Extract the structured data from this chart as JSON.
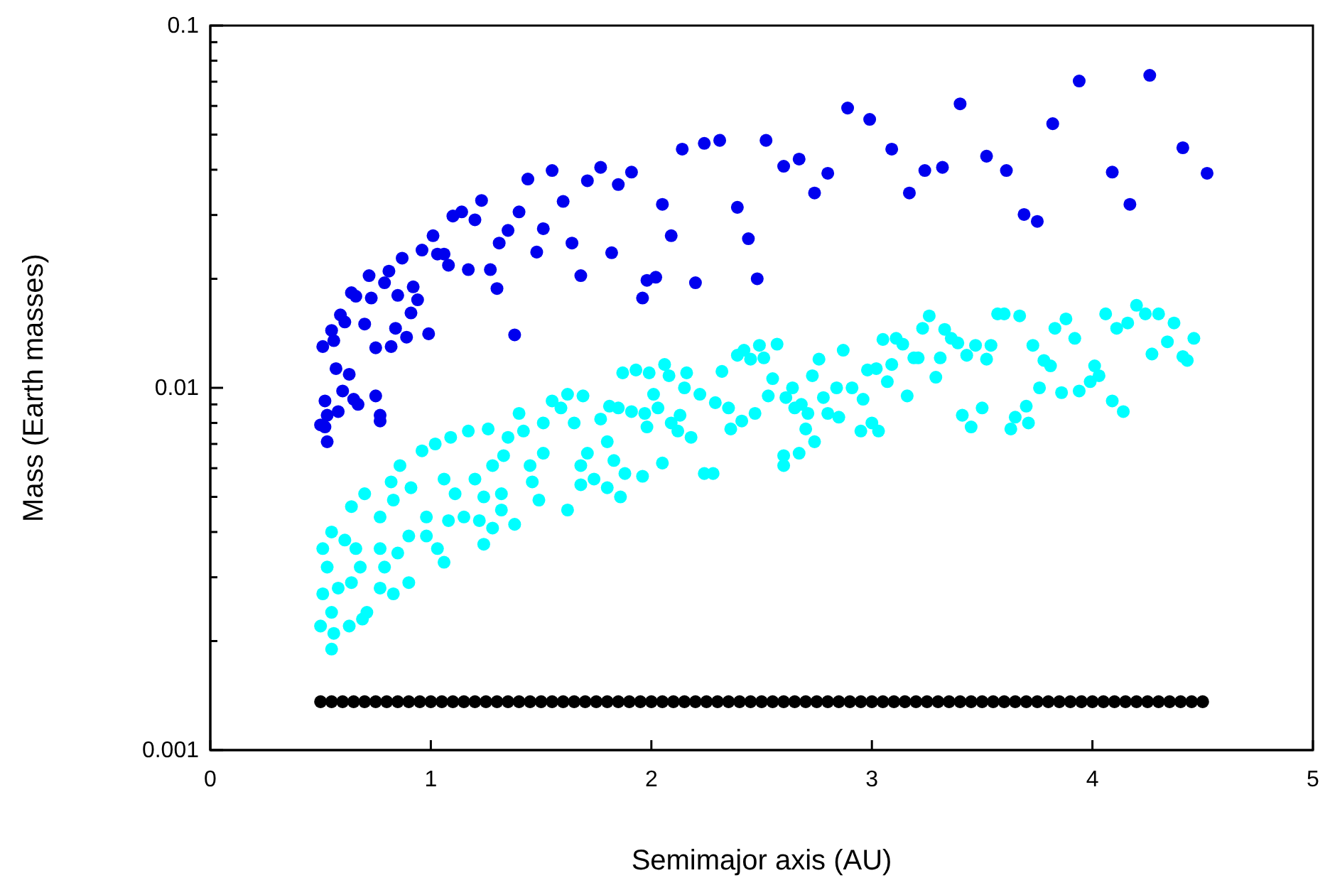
{
  "chart_data": {
    "type": "scatter",
    "xlabel": "Semimajor axis (AU)",
    "ylabel": "Mass (Earth masses)",
    "log": "y",
    "marker": "circle",
    "xlim": [
      0,
      5
    ],
    "xticks": [
      0,
      1,
      2,
      3,
      4,
      5
    ],
    "ylim": [
      0.001,
      0.1
    ],
    "yticks": [
      {
        "value": 0.001,
        "label": "0.001"
      },
      {
        "value": 0.002,
        "label": null
      },
      {
        "value": 0.003,
        "label": null
      },
      {
        "value": 0.004,
        "label": null
      },
      {
        "value": 0.005,
        "label": null
      },
      {
        "value": 0.006,
        "label": null
      },
      {
        "value": 0.007,
        "label": null
      },
      {
        "value": 0.008,
        "label": null
      },
      {
        "value": 0.009,
        "label": null
      },
      {
        "value": 0.01,
        "label": "0.01"
      },
      {
        "value": 0.02,
        "label": null
      },
      {
        "value": 0.03,
        "label": null
      },
      {
        "value": 0.04,
        "label": null
      },
      {
        "value": 0.05,
        "label": null
      },
      {
        "value": 0.06,
        "label": null
      },
      {
        "value": 0.07,
        "label": null
      },
      {
        "value": 0.08,
        "label": null
      },
      {
        "value": 0.09,
        "label": null
      },
      {
        "value": 0.1,
        "label": "0.1"
      }
    ],
    "series": [
      {
        "color": "#0000ee",
        "x": [
          0.51,
          0.55,
          0.56,
          0.59,
          0.61,
          0.64,
          0.66,
          0.72,
          0.73,
          0.7,
          0.79,
          0.81,
          0.85,
          0.87,
          0.92,
          0.94,
          0.91,
          0.84,
          0.89,
          0.99,
          0.75,
          0.82,
          0.96,
          1.01,
          1.03,
          1.06,
          1.08,
          1.1,
          1.14,
          1.2,
          1.23,
          1.17,
          1.27,
          1.3,
          1.31,
          1.35,
          1.4,
          1.44,
          1.51,
          1.48,
          1.55,
          1.6,
          1.64,
          1.68,
          1.38,
          1.71,
          1.77,
          1.85,
          1.91,
          1.82,
          1.96,
          1.98,
          2.02,
          2.05,
          2.09,
          2.14,
          2.2,
          2.24,
          2.31,
          2.39,
          2.44,
          2.48,
          2.52,
          2.6,
          2.67,
          2.8,
          2.74,
          2.89,
          2.99,
          3.09,
          3.17,
          3.24,
          3.32,
          3.4,
          3.52,
          3.61,
          3.69,
          3.75,
          3.82,
          3.94,
          4.09,
          4.17,
          4.26,
          4.41,
          4.52,
          0.57,
          0.63,
          0.6,
          0.52,
          0.65,
          0.67,
          0.58,
          0.53,
          0.75,
          0.77,
          0.77,
          0.5,
          0.52,
          0.53
        ],
        "values": [
          0.013,
          0.0144,
          0.0135,
          0.0159,
          0.0152,
          0.0183,
          0.0179,
          0.0204,
          0.0177,
          0.015,
          0.0195,
          0.021,
          0.018,
          0.0228,
          0.019,
          0.0175,
          0.0161,
          0.0146,
          0.0138,
          0.0141,
          0.0129,
          0.013,
          0.024,
          0.0263,
          0.0234,
          0.0234,
          0.0218,
          0.0298,
          0.0306,
          0.0291,
          0.0329,
          0.0212,
          0.0212,
          0.0188,
          0.0251,
          0.0272,
          0.0306,
          0.0377,
          0.0275,
          0.0237,
          0.0398,
          0.0327,
          0.0251,
          0.0204,
          0.014,
          0.0373,
          0.0406,
          0.0364,
          0.0394,
          0.0236,
          0.0177,
          0.0198,
          0.0202,
          0.0321,
          0.0263,
          0.0456,
          0.0195,
          0.0473,
          0.0482,
          0.0315,
          0.0258,
          0.02,
          0.0482,
          0.0409,
          0.0428,
          0.0391,
          0.0345,
          0.0592,
          0.0551,
          0.0456,
          0.0345,
          0.0398,
          0.0406,
          0.0608,
          0.0436,
          0.0398,
          0.0301,
          0.0288,
          0.0536,
          0.0703,
          0.0394,
          0.0321,
          0.0729,
          0.046,
          0.0391,
          0.0113,
          0.0109,
          0.0098,
          0.0092,
          0.0093,
          0.009,
          0.0086,
          0.0084,
          0.0095,
          0.0084,
          0.0081,
          0.0079,
          0.0078,
          0.0071
        ]
      },
      {
        "color": "#00ffff",
        "x": [
          0.55,
          0.5,
          0.56,
          0.55,
          0.63,
          0.69,
          0.71,
          0.51,
          0.53,
          0.58,
          0.64,
          0.68,
          0.77,
          0.83,
          0.9,
          0.51,
          0.55,
          0.61,
          0.64,
          0.7,
          0.66,
          0.77,
          0.79,
          0.85,
          0.77,
          0.83,
          0.86,
          0.82,
          0.9,
          0.96,
          0.91,
          0.98,
          0.98,
          1.03,
          1.06,
          1.02,
          1.06,
          1.09,
          1.11,
          1.08,
          1.15,
          1.17,
          1.2,
          1.24,
          1.22,
          1.24,
          1.26,
          1.28,
          1.32,
          1.28,
          1.33,
          1.35,
          1.4,
          1.42,
          1.32,
          1.38,
          1.45,
          1.46,
          1.49,
          1.51,
          1.51,
          1.55,
          1.59,
          1.62,
          1.69,
          1.65,
          1.62,
          1.68,
          1.71,
          1.74,
          1.68,
          1.77,
          1.8,
          1.83,
          1.8,
          1.86,
          1.88,
          1.81,
          1.85,
          1.87,
          1.93,
          1.91,
          1.97,
          1.96,
          1.99,
          1.98,
          2.01,
          2.03,
          2.05,
          2.06,
          2.08,
          2.09,
          2.12,
          2.13,
          2.15,
          2.16,
          2.18,
          2.24,
          2.28,
          2.22,
          2.29,
          2.35,
          2.32,
          2.36,
          2.41,
          2.47,
          2.39,
          2.42,
          2.45,
          2.49,
          2.51,
          2.57,
          2.55,
          2.53,
          2.61,
          2.64,
          2.65,
          2.7,
          2.6,
          2.67,
          2.6,
          2.73,
          2.76,
          2.68,
          2.71,
          2.74,
          2.78,
          2.84,
          2.91,
          2.96,
          2.8,
          2.85,
          2.87,
          2.95,
          3.0,
          3.03,
          2.98,
          3.02,
          3.07,
          3.05,
          3.09,
          3.11,
          3.14,
          3.16,
          3.19,
          3.21,
          3.23,
          3.26,
          3.29,
          3.31,
          3.33,
          3.36,
          3.39,
          3.41,
          3.45,
          3.43,
          3.47,
          3.5,
          3.52,
          3.54,
          3.57,
          3.6,
          3.67,
          3.63,
          3.65,
          3.7,
          3.71,
          3.73,
          3.76,
          3.78,
          3.81,
          3.83,
          3.86,
          3.88,
          3.92,
          3.94,
          3.99,
          4.01,
          4.03,
          4.06,
          4.09,
          4.11,
          4.14,
          4.16,
          4.2,
          4.24,
          4.27,
          4.3,
          4.34,
          4.37,
          4.41,
          4.43,
          4.46
        ],
        "values": [
          0.0019,
          0.0022,
          0.0021,
          0.0024,
          0.0022,
          0.0023,
          0.0024,
          0.0027,
          0.0032,
          0.0028,
          0.0029,
          0.0032,
          0.0028,
          0.0027,
          0.0029,
          0.0036,
          0.004,
          0.0038,
          0.0047,
          0.0051,
          0.0036,
          0.0036,
          0.0032,
          0.0035,
          0.0044,
          0.0049,
          0.0061,
          0.0055,
          0.0039,
          0.0067,
          0.0053,
          0.0044,
          0.0039,
          0.0036,
          0.0033,
          0.007,
          0.0056,
          0.0073,
          0.0051,
          0.0043,
          0.0044,
          0.0076,
          0.0056,
          0.005,
          0.0043,
          0.0037,
          0.0077,
          0.0061,
          0.0051,
          0.0041,
          0.0065,
          0.0073,
          0.0085,
          0.0076,
          0.0046,
          0.0042,
          0.0061,
          0.0055,
          0.0049,
          0.0066,
          0.008,
          0.0092,
          0.0088,
          0.0096,
          0.0095,
          0.008,
          0.0046,
          0.0061,
          0.0066,
          0.0056,
          0.0054,
          0.0082,
          0.0071,
          0.0063,
          0.0053,
          0.005,
          0.0058,
          0.0089,
          0.0088,
          0.011,
          0.0112,
          0.0086,
          0.0085,
          0.0057,
          0.011,
          0.0078,
          0.0096,
          0.0088,
          0.0062,
          0.0116,
          0.0108,
          0.008,
          0.0076,
          0.0084,
          0.01,
          0.011,
          0.0073,
          0.0058,
          0.0058,
          0.0096,
          0.0091,
          0.0088,
          0.0111,
          0.0077,
          0.0081,
          0.0085,
          0.0123,
          0.0127,
          0.012,
          0.0131,
          0.0121,
          0.0132,
          0.0106,
          0.0095,
          0.0094,
          0.01,
          0.0088,
          0.0077,
          0.0065,
          0.0066,
          0.0061,
          0.0108,
          0.012,
          0.009,
          0.0085,
          0.0071,
          0.0094,
          0.01,
          0.01,
          0.0093,
          0.0085,
          0.0083,
          0.0127,
          0.0076,
          0.008,
          0.0076,
          0.0112,
          0.0113,
          0.0104,
          0.0136,
          0.0116,
          0.0137,
          0.0132,
          0.0095,
          0.0121,
          0.0121,
          0.0146,
          0.0158,
          0.0107,
          0.0121,
          0.0145,
          0.0137,
          0.0133,
          0.0084,
          0.0078,
          0.0123,
          0.0131,
          0.0088,
          0.012,
          0.0131,
          0.016,
          0.016,
          0.0158,
          0.0077,
          0.0083,
          0.0089,
          0.008,
          0.0131,
          0.01,
          0.0119,
          0.0115,
          0.0146,
          0.0097,
          0.0155,
          0.0137,
          0.0098,
          0.0104,
          0.0115,
          0.0108,
          0.016,
          0.0092,
          0.0146,
          0.0086,
          0.0151,
          0.0169,
          0.016,
          0.0124,
          0.016,
          0.0134,
          0.0151,
          0.0122,
          0.0119,
          0.0137
        ]
      },
      {
        "color": "#000000",
        "x": [
          0.5,
          0.55,
          0.6,
          0.65,
          0.7,
          0.75,
          0.8,
          0.85,
          0.9,
          0.95,
          1.0,
          1.05,
          1.1,
          1.15,
          1.2,
          1.25,
          1.3,
          1.35,
          1.4,
          1.45,
          1.5,
          1.55,
          1.6,
          1.65,
          1.7,
          1.75,
          1.8,
          1.85,
          1.9,
          1.95,
          2.0,
          2.05,
          2.1,
          2.15,
          2.2,
          2.25,
          2.3,
          2.35,
          2.4,
          2.45,
          2.5,
          2.55,
          2.6,
          2.65,
          2.7,
          2.75,
          2.8,
          2.85,
          2.9,
          2.95,
          3.0,
          3.05,
          3.1,
          3.15,
          3.2,
          3.25,
          3.3,
          3.35,
          3.4,
          3.45,
          3.5,
          3.55,
          3.6,
          3.65,
          3.7,
          3.75,
          3.8,
          3.85,
          3.9,
          3.95,
          4.0,
          4.05,
          4.1,
          4.15,
          4.2,
          4.25,
          4.3,
          4.35,
          4.4,
          4.45,
          4.5
        ],
        "values": [
          0.00136,
          0.00136,
          0.00136,
          0.00136,
          0.00136,
          0.00136,
          0.00136,
          0.00136,
          0.00136,
          0.00136,
          0.00136,
          0.00136,
          0.00136,
          0.00136,
          0.00136,
          0.00136,
          0.00136,
          0.00136,
          0.00136,
          0.00136,
          0.00136,
          0.00136,
          0.00136,
          0.00136,
          0.00136,
          0.00136,
          0.00136,
          0.00136,
          0.00136,
          0.00136,
          0.00136,
          0.00136,
          0.00136,
          0.00136,
          0.00136,
          0.00136,
          0.00136,
          0.00136,
          0.00136,
          0.00136,
          0.00136,
          0.00136,
          0.00136,
          0.00136,
          0.00136,
          0.00136,
          0.00136,
          0.00136,
          0.00136,
          0.00136,
          0.00136,
          0.00136,
          0.00136,
          0.00136,
          0.00136,
          0.00136,
          0.00136,
          0.00136,
          0.00136,
          0.00136,
          0.00136,
          0.00136,
          0.00136,
          0.00136,
          0.00136,
          0.00136,
          0.00136,
          0.00136,
          0.00136,
          0.00136,
          0.00136,
          0.00136,
          0.00136,
          0.00136,
          0.00136,
          0.00136,
          0.00136,
          0.00136,
          0.00136,
          0.00136,
          0.00136
        ]
      }
    ]
  }
}
